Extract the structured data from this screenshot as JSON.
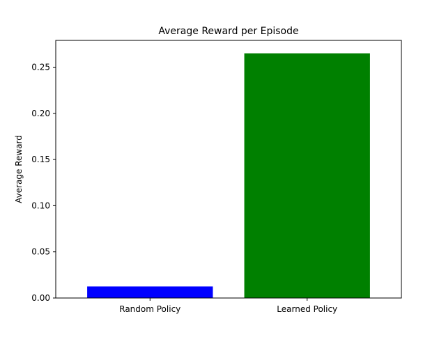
{
  "chart_data": {
    "type": "bar",
    "title": "Average Reward per Episode",
    "xlabel": "",
    "ylabel": "Average Reward",
    "categories": [
      "Random Policy",
      "Learned Policy"
    ],
    "values": [
      0.0125,
      0.265
    ],
    "bar_colors": [
      "#0000ff",
      "#008000"
    ],
    "ylim": [
      0,
      0.279
    ],
    "yticks": [
      0.0,
      0.05,
      0.1,
      0.15,
      0.2,
      0.25
    ],
    "ytick_labels": [
      "0.00",
      "0.05",
      "0.10",
      "0.15",
      "0.20",
      "0.25"
    ],
    "grid": false,
    "legend": "none"
  }
}
